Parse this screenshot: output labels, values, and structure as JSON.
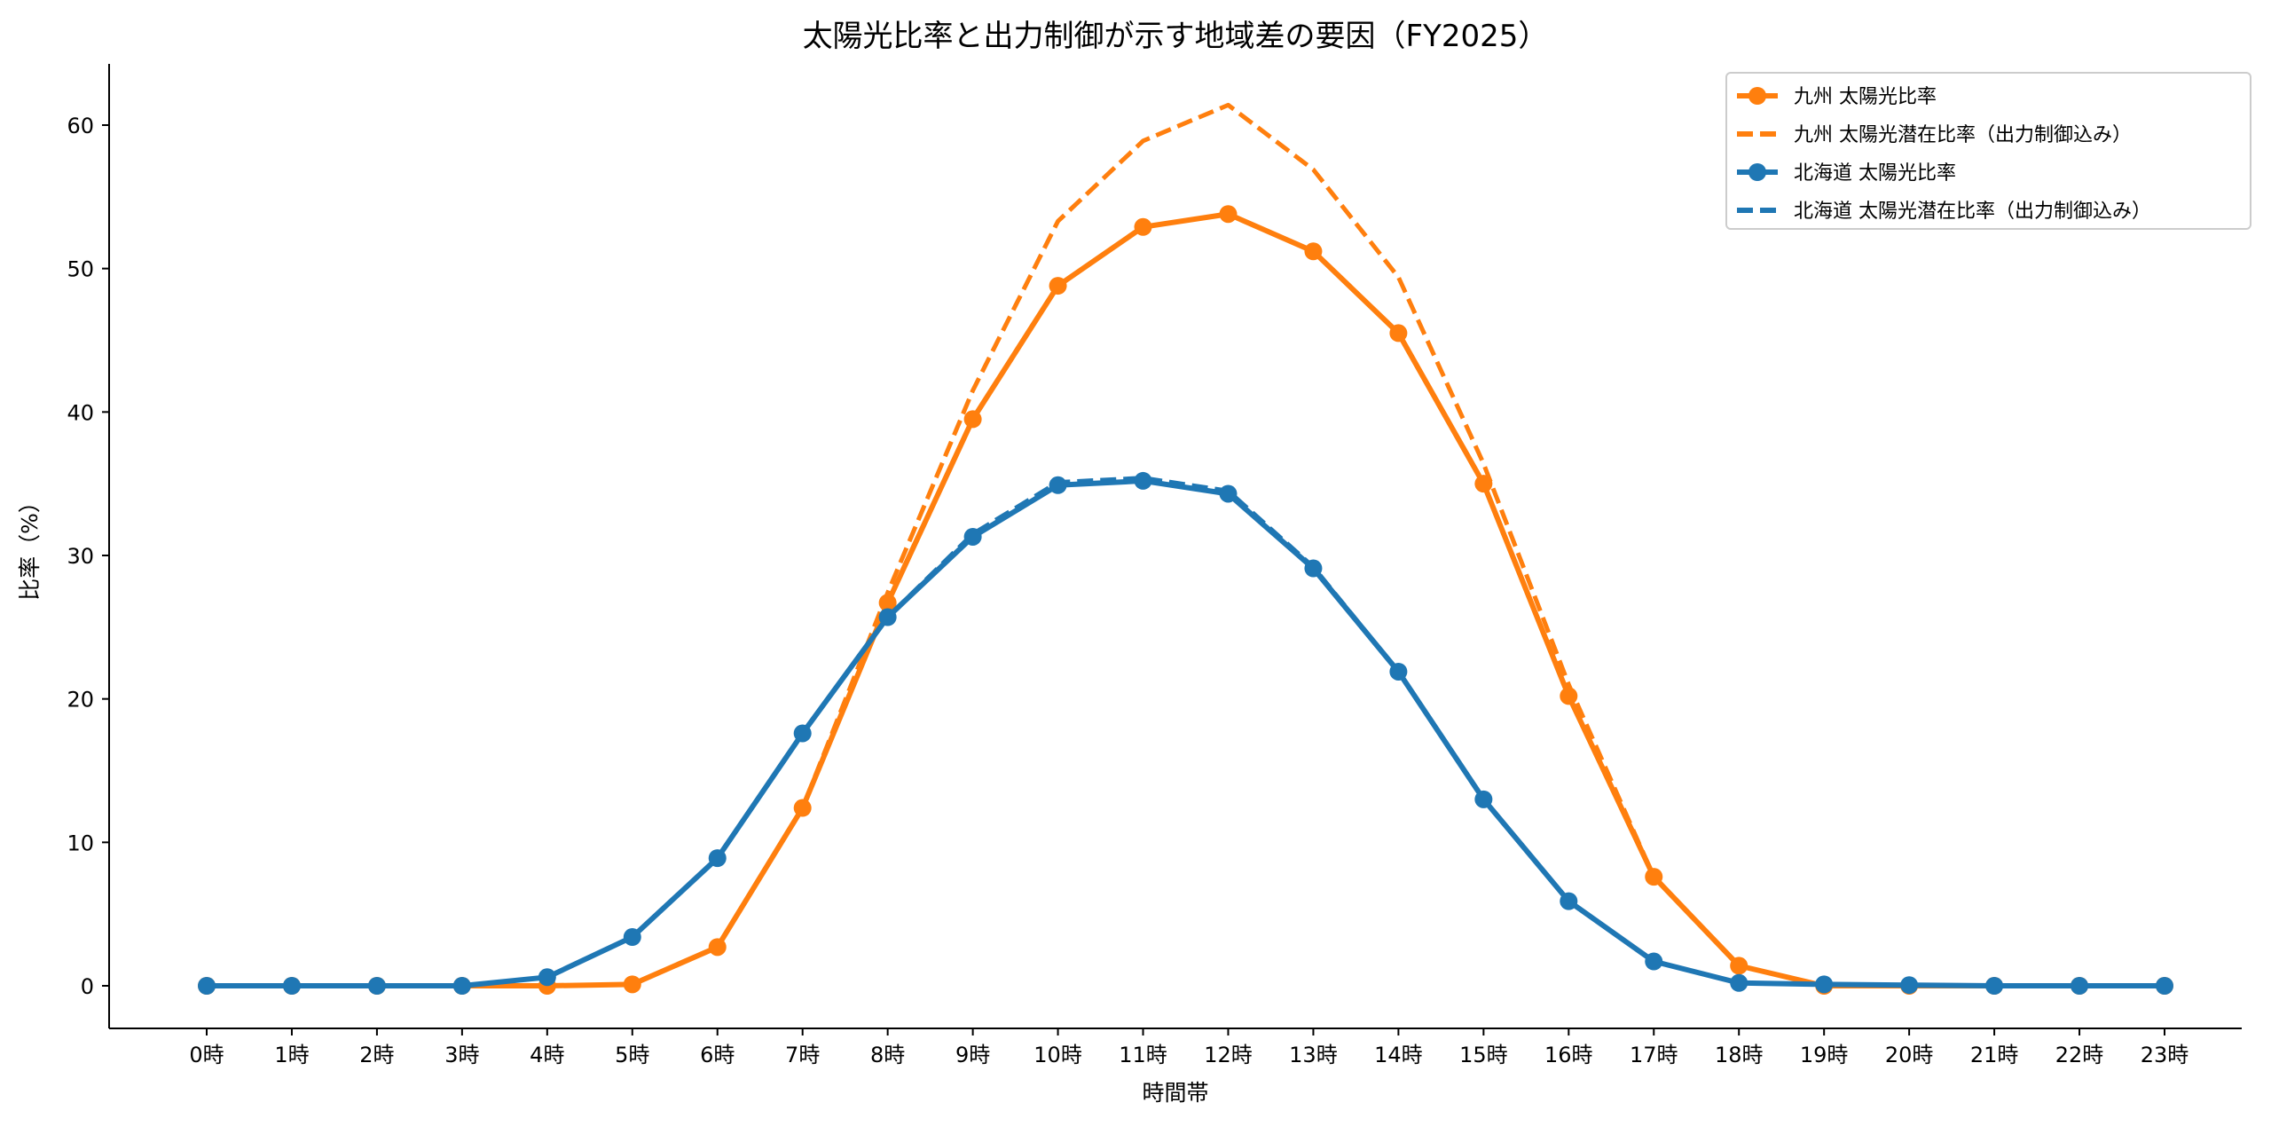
{
  "chart_data": {
    "type": "line",
    "title": "太陽光比率と出力制御が示す地域差の要因（FY2025）",
    "xlabel": "時間帯",
    "ylabel": "比率（%）",
    "categories": [
      "0時",
      "1時",
      "2時",
      "3時",
      "4時",
      "5時",
      "6時",
      "7時",
      "8時",
      "9時",
      "10時",
      "11時",
      "12時",
      "13時",
      "14時",
      "15時",
      "16時",
      "17時",
      "18時",
      "19時",
      "20時",
      "21時",
      "22時",
      "23時"
    ],
    "ylim": [
      -3,
      64.3
    ],
    "yticks": [
      0,
      10,
      20,
      30,
      40,
      50,
      60
    ],
    "grid": false,
    "legend_position": "top-right",
    "series": [
      {
        "name": "九州 太陽光比率",
        "color": "#ff7f0e",
        "style": "solid",
        "marker": true,
        "values": [
          0,
          0,
          0,
          0,
          0,
          0.1,
          2.7,
          12.4,
          26.7,
          39.5,
          48.8,
          52.9,
          53.8,
          51.2,
          45.5,
          35.0,
          20.2,
          7.6,
          1.4,
          0.0,
          0,
          0,
          0,
          0
        ]
      },
      {
        "name": "九州 太陽光潜在比率（出力制御込み）",
        "color": "#ff7f0e",
        "style": "dashed",
        "marker": false,
        "values": [
          0,
          0,
          0,
          0,
          0,
          0.1,
          2.7,
          12.4,
          27.4,
          41.5,
          53.3,
          58.9,
          61.4,
          56.9,
          49.4,
          36.4,
          21.0,
          7.6,
          1.4,
          0.0,
          0,
          0,
          0,
          0
        ]
      },
      {
        "name": "北海道 太陽光比率",
        "color": "#1f77b4",
        "style": "solid",
        "marker": true,
        "values": [
          0,
          0,
          0,
          0,
          0.6,
          3.4,
          8.9,
          17.6,
          25.7,
          31.3,
          34.9,
          35.2,
          34.3,
          29.1,
          21.9,
          13.0,
          5.9,
          1.7,
          0.2,
          0.1,
          0.05,
          0,
          0,
          0
        ]
      },
      {
        "name": "北海道 太陽光潜在比率（出力制御込み）",
        "color": "#1f77b4",
        "style": "dashed",
        "marker": false,
        "values": [
          0,
          0,
          0,
          0,
          0.6,
          3.4,
          8.9,
          17.6,
          25.7,
          31.5,
          35.1,
          35.4,
          34.5,
          29.2,
          21.9,
          13.0,
          5.9,
          1.7,
          0.2,
          0.1,
          0.05,
          0,
          0,
          0
        ]
      }
    ]
  }
}
